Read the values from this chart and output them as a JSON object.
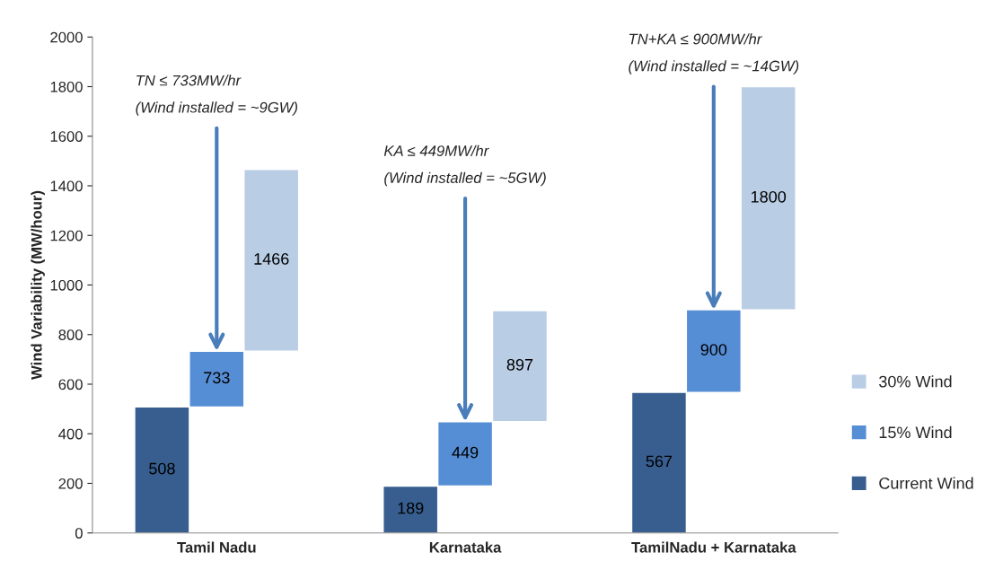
{
  "chart_data": {
    "type": "bar",
    "ylabel": "Wind Variability (MW/hour)",
    "categories": [
      "Tamil Nadu",
      "Karnataka",
      "TamilNadu + Karnataka"
    ],
    "series": [
      {
        "name": "Current Wind",
        "color": "#375e8f",
        "base": [
          0,
          0,
          0
        ],
        "values": [
          508,
          189,
          567
        ],
        "value_labels": [
          "508",
          "189",
          "567"
        ]
      },
      {
        "name": "15% Wind",
        "color": "#558ed5",
        "base": [
          508,
          189,
          567
        ],
        "values": [
          225,
          260,
          333
        ],
        "value_labels": [
          "733",
          "449",
          "900"
        ]
      },
      {
        "name": "30% Wind",
        "color": "#b9cde5",
        "base": [
          733,
          449,
          900
        ],
        "values": [
          733,
          448,
          900
        ],
        "value_labels": [
          "1466",
          "897",
          "1800"
        ]
      }
    ],
    "ylim": [
      0,
      2000
    ],
    "yticks": [
      0,
      200,
      400,
      600,
      800,
      1000,
      1200,
      1400,
      1600,
      1800,
      2000
    ],
    "annotations": [
      {
        "text": "TN ≤ 733MW/hr\n(Wind installed = ~9GW)",
        "x": "Tamil Nadu",
        "y": 733
      },
      {
        "text": "KA ≤ 449MW/hr\n(Wind installed = ~5GW)",
        "x": "Karnataka",
        "y": 449
      },
      {
        "text": "TN+KA ≤ 900MW/hr\n(Wind installed = ~14GW)",
        "x": "TamilNadu + Karnataka",
        "y": 900
      }
    ],
    "grid": false,
    "legend": "right"
  }
}
